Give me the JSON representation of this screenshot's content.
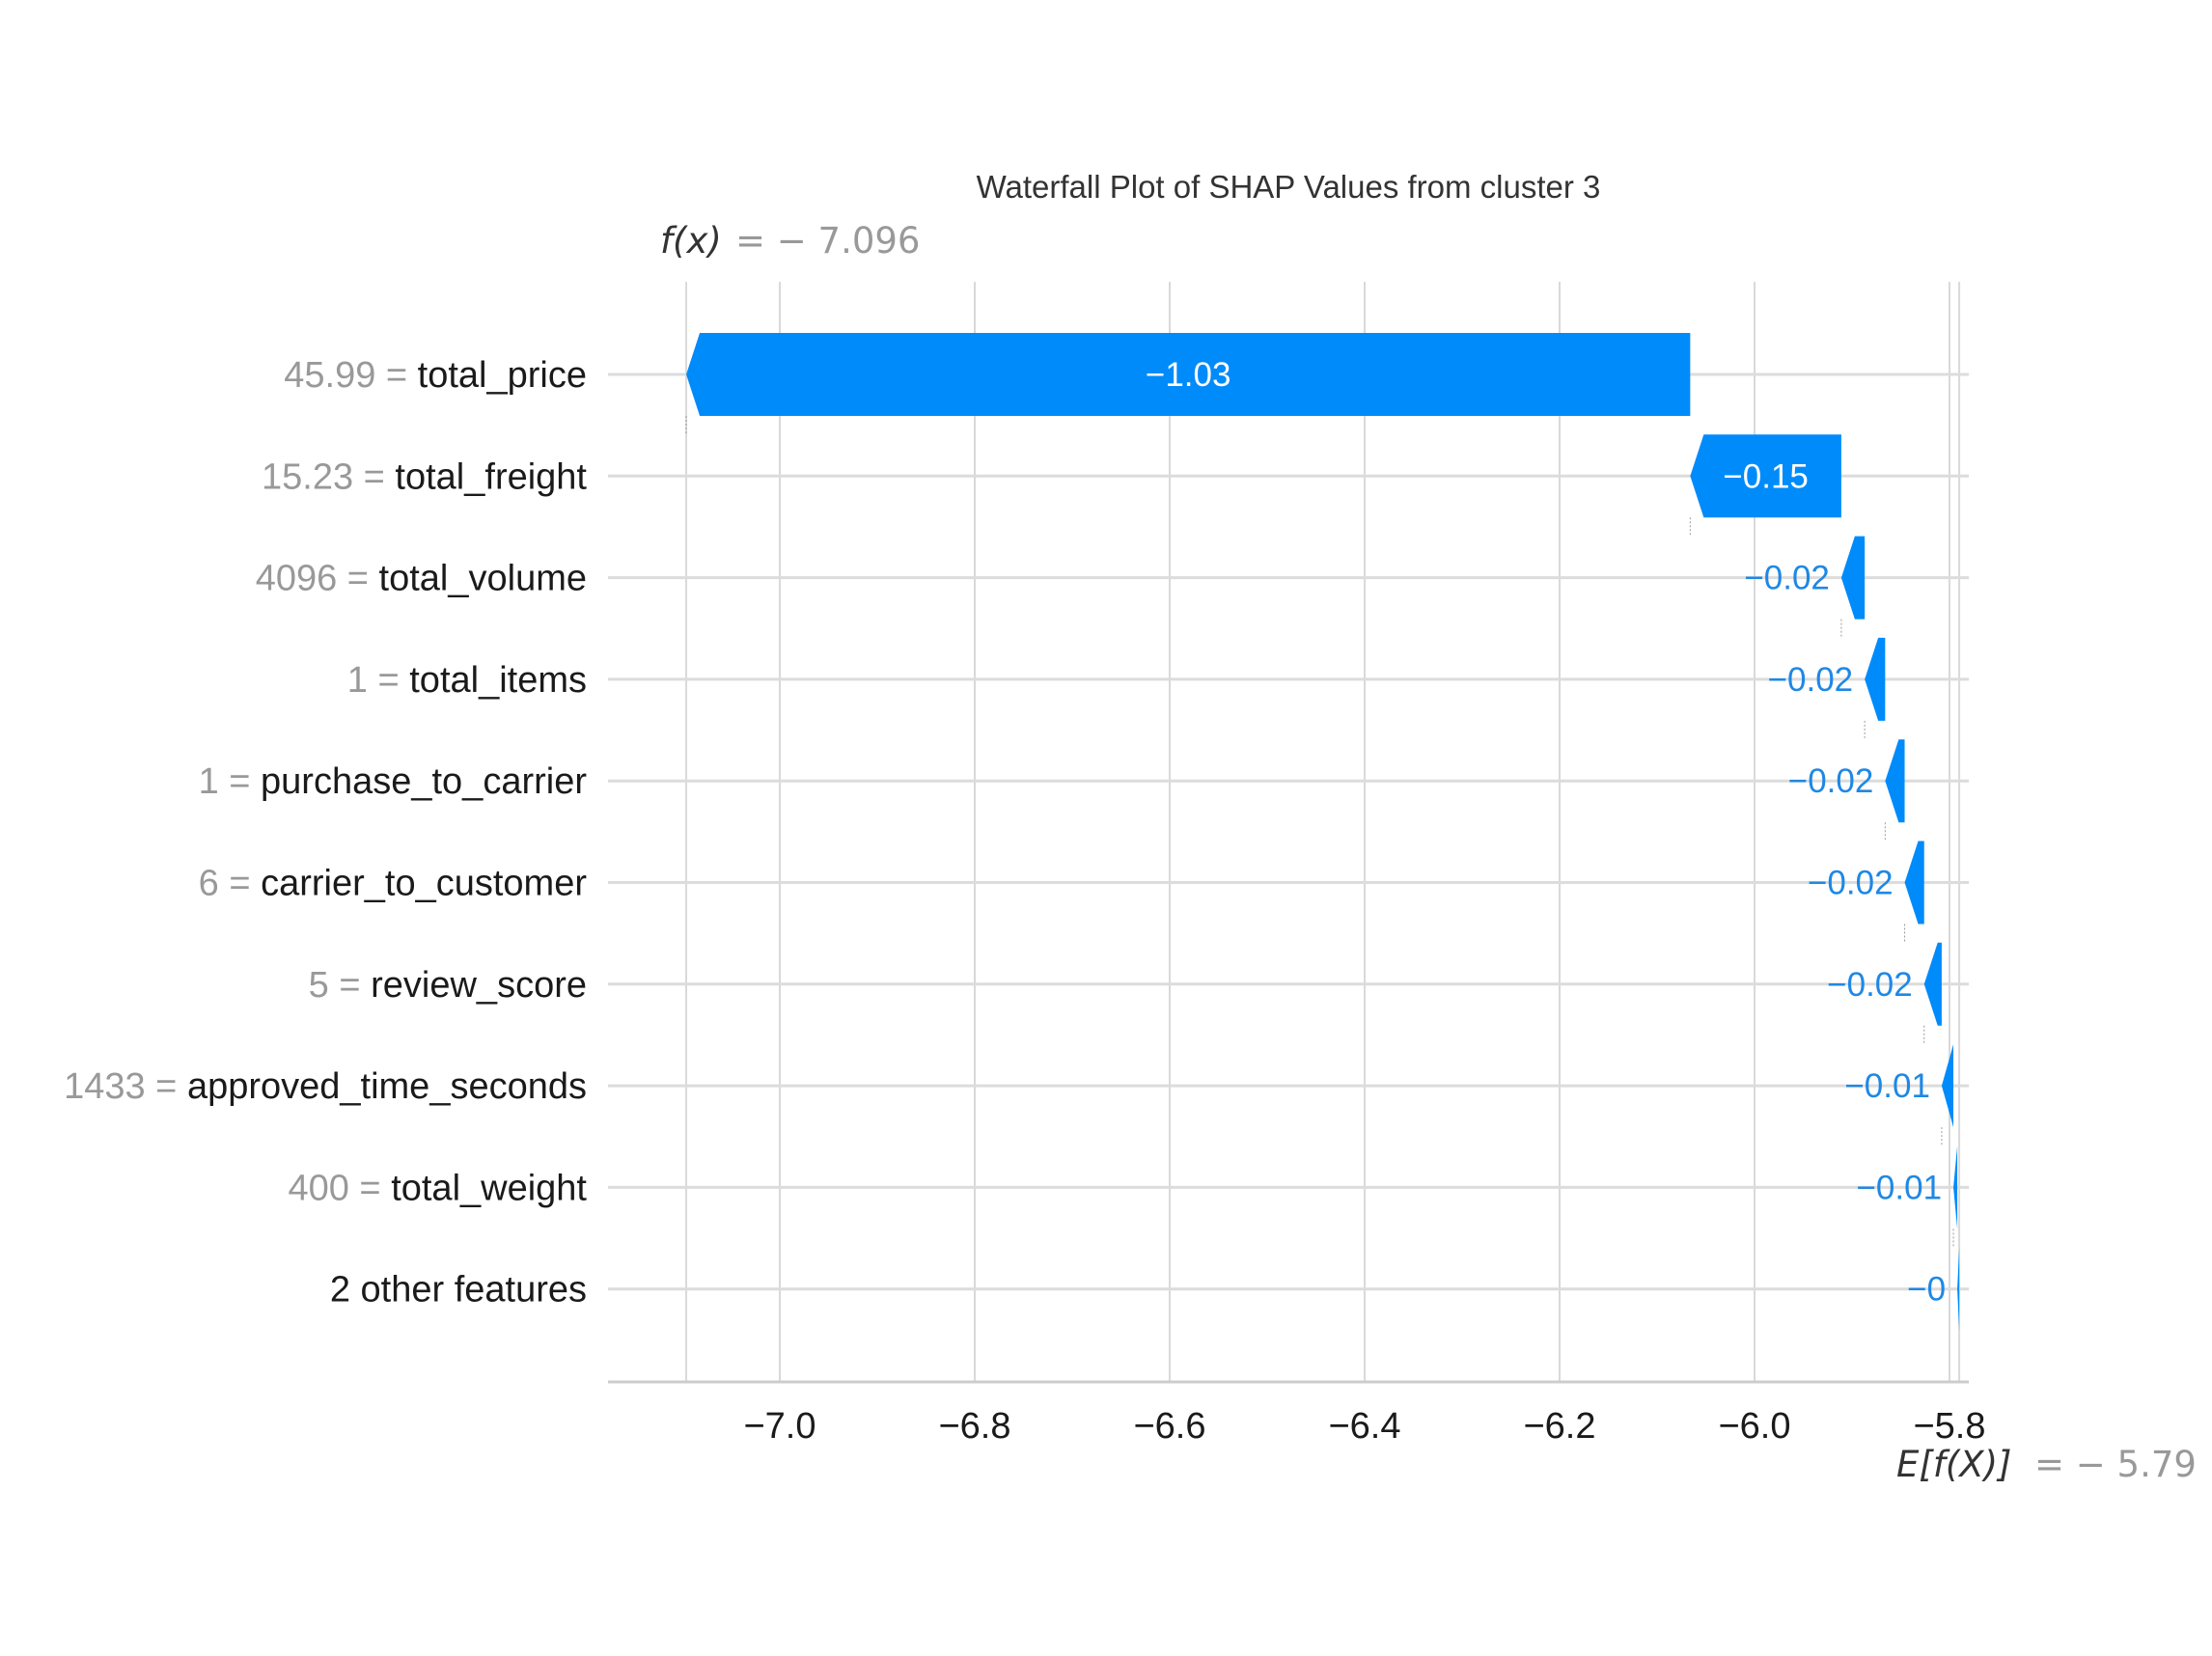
{
  "chart_data": {
    "type": "waterfall",
    "title": "Waterfall Plot of SHAP Values from cluster 3",
    "fx": {
      "label": "f(x)",
      "value_text": "= − 7.096",
      "value": -7.096
    },
    "expected": {
      "label": "E[f(X)]",
      "value_text": "= − 5.79",
      "value": -5.79
    },
    "xlim": [
      -7.18,
      -5.78
    ],
    "xticks": [
      {
        "value": -7.0,
        "label": "−7.0"
      },
      {
        "value": -6.8,
        "label": "−6.8"
      },
      {
        "value": -6.6,
        "label": "−6.6"
      },
      {
        "value": -6.4,
        "label": "−6.4"
      },
      {
        "value": -6.2,
        "label": "−6.2"
      },
      {
        "value": -6.0,
        "label": "−6.0"
      },
      {
        "value": -5.8,
        "label": "−5.8"
      }
    ],
    "grid": true,
    "color": "#008bfb",
    "features": [
      {
        "value_text": "45.99 =",
        "name": "total_price",
        "shap": -1.03,
        "label": "−1.03",
        "start": -6.066,
        "end": -7.096
      },
      {
        "value_text": "15.23 =",
        "name": "total_freight",
        "shap": -0.15,
        "label": "−0.15",
        "start": -5.911,
        "end": -6.066
      },
      {
        "value_text": "4096 =",
        "name": "total_volume",
        "shap": -0.02,
        "label": "−0.02",
        "start": -5.887,
        "end": -5.911
      },
      {
        "value_text": "1 =",
        "name": "total_items",
        "shap": -0.02,
        "label": "−0.02",
        "start": -5.866,
        "end": -5.887
      },
      {
        "value_text": "1 =",
        "name": "purchase_to_carrier",
        "shap": -0.02,
        "label": "−0.02",
        "start": -5.846,
        "end": -5.866
      },
      {
        "value_text": "6 =",
        "name": "carrier_to_customer",
        "shap": -0.02,
        "label": "−0.02",
        "start": -5.826,
        "end": -5.846
      },
      {
        "value_text": "5 =",
        "name": "review_score",
        "shap": -0.02,
        "label": "−0.02",
        "start": -5.808,
        "end": -5.826
      },
      {
        "value_text": "1433 =",
        "name": "approved_time_seconds",
        "shap": -0.01,
        "label": "−0.01",
        "start": -5.796,
        "end": -5.808
      },
      {
        "value_text": "400 =",
        "name": "total_weight",
        "shap": -0.01,
        "label": "−0.01",
        "start": -5.792,
        "end": -5.796
      },
      {
        "value_text": "",
        "name": "2 other features",
        "shap": 0.0,
        "label": "−0",
        "start": -5.79,
        "end": -5.792
      }
    ]
  }
}
